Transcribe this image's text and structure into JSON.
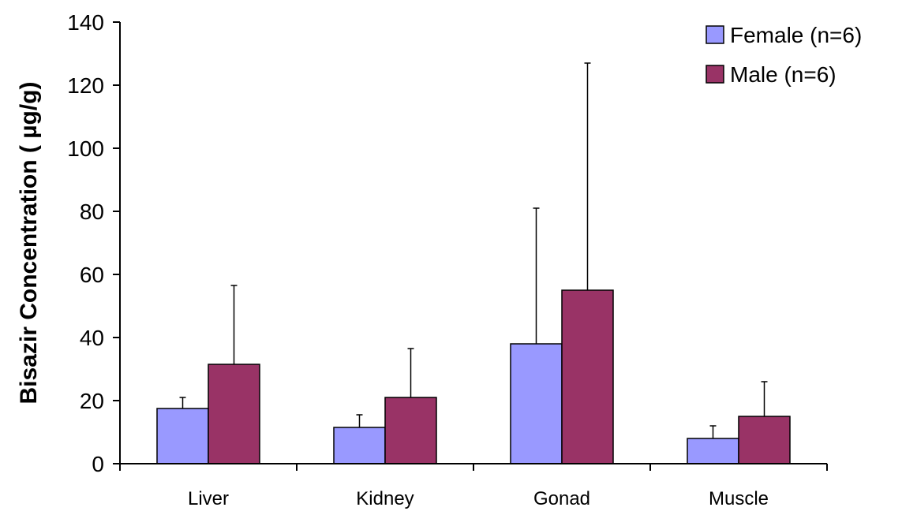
{
  "chart_data": {
    "type": "bar",
    "title": "",
    "xlabel": "",
    "ylabel": "Bisazir Concentration ( µg/g)",
    "ylim": [
      0,
      140
    ],
    "yticks": [
      0,
      20,
      40,
      60,
      80,
      100,
      120,
      140
    ],
    "categories": [
      "Liver",
      "Kidney",
      "Gonad",
      "Muscle"
    ],
    "grid": false,
    "legend_position": "top-right",
    "series": [
      {
        "name": "Female (n=6)",
        "color": "#9999ff",
        "values": [
          17.5,
          11.5,
          38,
          8
        ],
        "error_upper": [
          21,
          15.5,
          81,
          12
        ]
      },
      {
        "name": "Male (n=6)",
        "color": "#993366",
        "values": [
          31.5,
          21,
          55,
          15
        ],
        "error_upper": [
          56.5,
          36.5,
          127,
          26
        ]
      }
    ]
  }
}
